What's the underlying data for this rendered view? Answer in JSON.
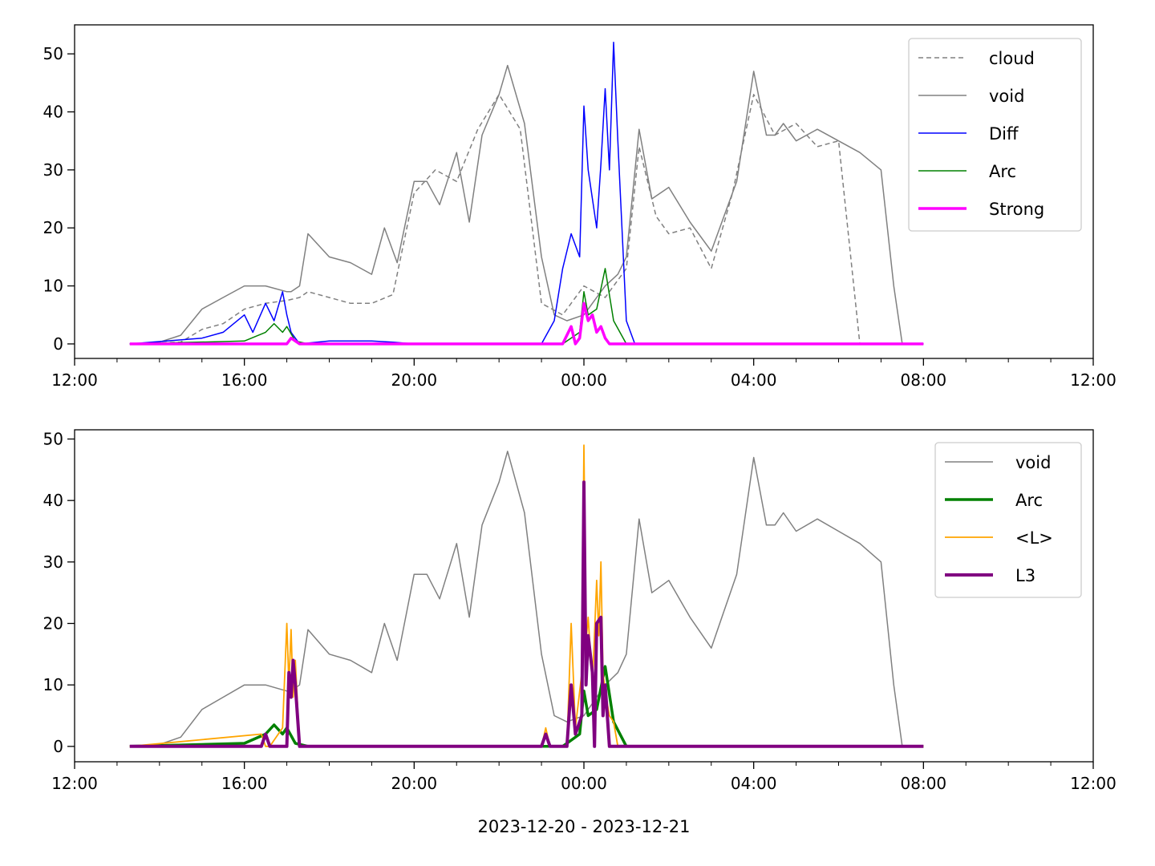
{
  "figure": {
    "xlabel": "2023-12-20 - 2023-12-21"
  },
  "chart_data": [
    {
      "type": "line",
      "panel": "top",
      "x_unit": "hours since 2023-12-20 00:00",
      "xlim": [
        12,
        36
      ],
      "ylim": [
        -2.5,
        55
      ],
      "x_ticks": [
        12,
        16,
        20,
        24,
        28,
        32,
        36
      ],
      "x_tick_labels": [
        "12:00",
        "16:00",
        "20:00",
        "00:00",
        "04:00",
        "08:00",
        "12:00"
      ],
      "y_ticks": [
        0,
        10,
        20,
        30,
        40,
        50
      ],
      "y_tick_labels": [
        "0",
        "10",
        "20",
        "30",
        "40",
        "50"
      ],
      "grid": false,
      "legend_position": "upper right",
      "series": [
        {
          "name": "cloud",
          "color": "#808080",
          "style": "dashed",
          "width": 1.5,
          "x": [
            13.3,
            14.5,
            15.0,
            15.5,
            16.0,
            16.5,
            17.0,
            17.3,
            17.5,
            18.0,
            18.5,
            19.0,
            19.5,
            20.0,
            20.5,
            21.0,
            21.5,
            22.0,
            22.5,
            23.0,
            23.5,
            24.0,
            24.5,
            25.0,
            25.3,
            25.7,
            26.0,
            26.5,
            27.0,
            27.5,
            28.0,
            28.5,
            29.0,
            29.5,
            30.0,
            30.5,
            31.0,
            31.5,
            32.0
          ],
          "y": [
            0,
            0.3,
            2.5,
            3.5,
            6,
            7,
            7.5,
            8,
            9,
            8,
            7,
            7,
            8.5,
            26,
            30,
            28,
            37,
            43,
            37,
            7,
            5,
            10,
            8,
            13,
            34,
            22,
            19,
            20,
            13,
            26,
            43,
            36,
            38,
            34,
            35,
            0,
            0,
            0,
            0
          ]
        },
        {
          "name": "void",
          "color": "#808080",
          "style": "solid",
          "width": 1.5,
          "x": [
            13.3,
            14.0,
            14.5,
            15.0,
            15.5,
            16.0,
            16.5,
            17.0,
            17.1,
            17.3,
            17.5,
            18.0,
            18.5,
            19.0,
            19.3,
            19.6,
            20.0,
            20.3,
            20.6,
            21.0,
            21.3,
            21.6,
            22.0,
            22.2,
            22.6,
            23.0,
            23.3,
            23.6,
            24.0,
            24.5,
            24.8,
            25.0,
            25.3,
            25.6,
            26.0,
            26.5,
            27.0,
            27.3,
            27.6,
            28.0,
            28.3,
            28.5,
            28.7,
            29.0,
            29.5,
            30.0,
            30.5,
            31.0,
            31.3,
            31.5,
            31.7,
            32.0
          ],
          "y": [
            0,
            0.3,
            1.5,
            6,
            8,
            10,
            10,
            9,
            9,
            10,
            19,
            15,
            14,
            12,
            20,
            14,
            28,
            28,
            24,
            33,
            21,
            36,
            43,
            48,
            38,
            15,
            5,
            4,
            5,
            10,
            12,
            15,
            37,
            25,
            27,
            21,
            16,
            22,
            28,
            47,
            36,
            36,
            38,
            35,
            37,
            35,
            33,
            30,
            10,
            0,
            0,
            0
          ]
        },
        {
          "name": "Diff",
          "color": "#0000ff",
          "style": "solid",
          "width": 1.5,
          "x": [
            13.3,
            15.0,
            15.5,
            16.0,
            16.2,
            16.5,
            16.7,
            16.9,
            17.0,
            17.1,
            17.3,
            18.0,
            19.0,
            19.5,
            20.0,
            23.0,
            23.3,
            23.5,
            23.7,
            23.9,
            24.0,
            24.1,
            24.2,
            24.3,
            24.4,
            24.5,
            24.6,
            24.7,
            24.8,
            25.0,
            25.2,
            25.5,
            32.0
          ],
          "y": [
            0,
            1,
            2,
            5,
            2,
            7,
            4,
            9,
            5,
            2,
            0,
            0.5,
            0.5,
            0.3,
            0,
            0,
            4,
            13,
            19,
            15,
            41,
            30,
            25,
            20,
            31,
            44,
            30,
            52,
            35,
            4,
            0,
            0,
            0
          ]
        },
        {
          "name": "Arc",
          "color": "#008000",
          "style": "solid",
          "width": 1.5,
          "x": [
            13.3,
            16.0,
            16.5,
            16.7,
            16.9,
            17.0,
            17.2,
            17.5,
            23.5,
            23.9,
            24.0,
            24.1,
            24.3,
            24.5,
            24.7,
            25.0,
            25.2,
            32.0
          ],
          "y": [
            0,
            0.5,
            2,
            3.5,
            2,
            3,
            0.5,
            0,
            0,
            2,
            9,
            5,
            6,
            13,
            4,
            0,
            0,
            0
          ]
        },
        {
          "name": "Strong",
          "color": "#ff00ff",
          "style": "solid",
          "width": 3.5,
          "x": [
            13.3,
            16.0,
            17.0,
            17.1,
            17.3,
            23.5,
            23.7,
            23.8,
            23.9,
            24.0,
            24.1,
            24.2,
            24.3,
            24.4,
            24.5,
            24.6,
            24.7,
            32.0
          ],
          "y": [
            0,
            0,
            0,
            1,
            0,
            0,
            3,
            0,
            1,
            7,
            4,
            5,
            2,
            3,
            1,
            0,
            0,
            0
          ]
        }
      ]
    },
    {
      "type": "line",
      "panel": "bottom",
      "x_unit": "hours since 2023-12-20 00:00",
      "xlim": [
        12,
        36
      ],
      "ylim": [
        -2.5,
        51.5
      ],
      "x_ticks": [
        12,
        16,
        20,
        24,
        28,
        32,
        36
      ],
      "x_tick_labels": [
        "12:00",
        "16:00",
        "20:00",
        "00:00",
        "04:00",
        "08:00",
        "12:00"
      ],
      "y_ticks": [
        0,
        10,
        20,
        30,
        40,
        50
      ],
      "y_tick_labels": [
        "0",
        "10",
        "20",
        "30",
        "40",
        "50"
      ],
      "grid": false,
      "legend_position": "upper right",
      "series": [
        {
          "name": "void",
          "color": "#808080",
          "style": "solid",
          "width": 1.5,
          "x": [
            13.3,
            14.0,
            14.5,
            15.0,
            15.5,
            16.0,
            16.5,
            17.0,
            17.1,
            17.3,
            17.5,
            18.0,
            18.5,
            19.0,
            19.3,
            19.6,
            20.0,
            20.3,
            20.6,
            21.0,
            21.3,
            21.6,
            22.0,
            22.2,
            22.6,
            23.0,
            23.3,
            23.6,
            24.0,
            24.5,
            24.8,
            25.0,
            25.3,
            25.6,
            26.0,
            26.5,
            27.0,
            27.3,
            27.6,
            28.0,
            28.3,
            28.5,
            28.7,
            29.0,
            29.5,
            30.0,
            30.5,
            31.0,
            31.3,
            31.5,
            31.7,
            32.0
          ],
          "y": [
            0,
            0.3,
            1.5,
            6,
            8,
            10,
            10,
            9,
            9,
            10,
            19,
            15,
            14,
            12,
            20,
            14,
            28,
            28,
            24,
            33,
            21,
            36,
            43,
            48,
            38,
            15,
            5,
            4,
            5,
            10,
            12,
            15,
            37,
            25,
            27,
            21,
            16,
            22,
            28,
            47,
            36,
            36,
            38,
            35,
            37,
            35,
            33,
            30,
            10,
            0,
            0,
            0
          ]
        },
        {
          "name": "Arc",
          "color": "#008000",
          "style": "solid",
          "width": 3.5,
          "x": [
            13.3,
            16.0,
            16.5,
            16.7,
            16.9,
            17.0,
            17.2,
            17.5,
            23.5,
            23.9,
            24.0,
            24.1,
            24.3,
            24.5,
            24.7,
            25.0,
            25.2,
            32.0
          ],
          "y": [
            0,
            0.5,
            2,
            3.5,
            2,
            3,
            0.5,
            0,
            0,
            2,
            9,
            5,
            6,
            13,
            4,
            0,
            0,
            0
          ]
        },
        {
          "name": "<L>",
          "color": "#ffa500",
          "style": "solid",
          "width": 1.8,
          "x": [
            13.3,
            16.4,
            16.5,
            16.6,
            16.9,
            17.0,
            17.05,
            17.1,
            17.15,
            17.2,
            17.3,
            23.0,
            23.1,
            23.2,
            23.6,
            23.7,
            23.8,
            23.95,
            24.0,
            24.05,
            24.1,
            24.2,
            24.3,
            24.35,
            24.4,
            24.45,
            24.5,
            24.6,
            24.7,
            24.8,
            32.0
          ],
          "y": [
            0,
            2,
            0,
            0,
            3,
            20,
            10,
            19,
            8,
            14,
            0,
            0,
            3,
            0,
            0,
            20,
            3,
            12,
            49,
            17,
            21,
            10,
            27,
            18,
            30,
            12,
            9,
            5,
            4,
            0,
            0
          ]
        },
        {
          "name": "L3",
          "color": "#800080",
          "style": "solid",
          "width": 4,
          "x": [
            13.3,
            16.4,
            16.5,
            16.6,
            17.0,
            17.05,
            17.1,
            17.15,
            17.2,
            17.3,
            23.0,
            23.1,
            23.2,
            23.6,
            23.7,
            23.8,
            23.95,
            24.0,
            24.05,
            24.1,
            24.2,
            24.25,
            24.3,
            24.4,
            24.45,
            24.5,
            24.6,
            32.0
          ],
          "y": [
            0,
            0,
            2,
            0,
            0,
            12,
            8,
            14,
            10,
            0,
            0,
            2,
            0,
            0,
            10,
            2,
            5,
            43,
            10,
            18,
            12,
            0,
            20,
            21,
            5,
            10,
            0,
            0
          ]
        }
      ]
    }
  ]
}
